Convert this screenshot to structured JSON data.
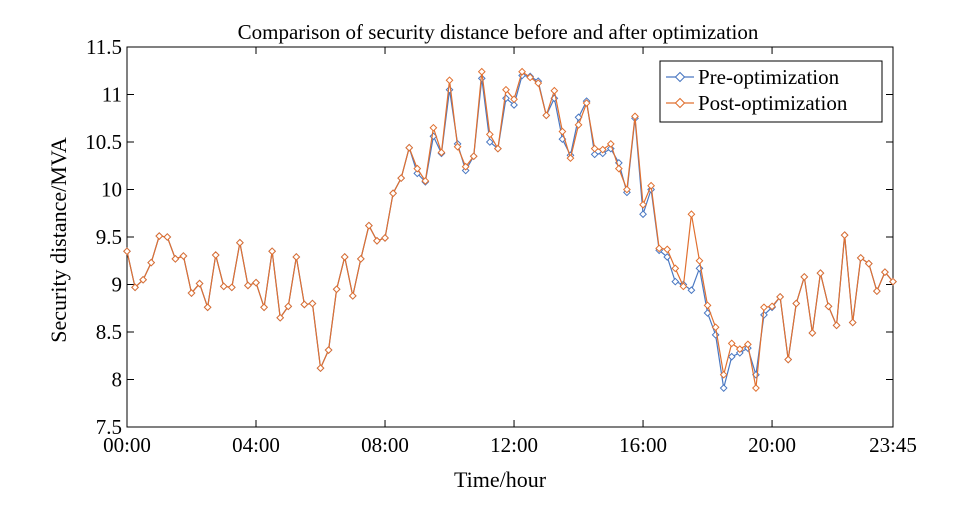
{
  "chart_data": {
    "type": "line",
    "title": "Comparison of security distance before and after optimization",
    "xlabel": "Time/hour",
    "ylabel": "Security distance/MVA",
    "x_tick_labels": [
      "00:00",
      "04:00",
      "08:00",
      "12:00",
      "16:00",
      "20:00",
      "23:45"
    ],
    "y_tick_labels": [
      "7.5",
      "8",
      "8.5",
      "9",
      "9.5",
      "10",
      "10.5",
      "11",
      "11.5"
    ],
    "xlim": [
      0,
      95
    ],
    "ylim": [
      7.5,
      11.5
    ],
    "grid": false,
    "legend_position": "top-right",
    "series": [
      {
        "name": "Pre-optimization",
        "color": "#4a78c2",
        "values": [
          9.35,
          8.97,
          9.05,
          9.23,
          9.51,
          9.5,
          9.27,
          9.3,
          8.91,
          9.01,
          8.76,
          9.31,
          8.98,
          8.97,
          9.44,
          8.99,
          9.02,
          8.76,
          9.35,
          8.65,
          8.77,
          9.29,
          8.79,
          8.8,
          8.12,
          8.31,
          8.95,
          9.29,
          8.88,
          9.27,
          9.62,
          9.46,
          9.49,
          9.96,
          10.12,
          10.44,
          10.17,
          10.08,
          10.56,
          10.38,
          11.05,
          10.48,
          10.2,
          10.35,
          11.17,
          10.5,
          10.43,
          10.96,
          10.89,
          11.2,
          11.19,
          11.14,
          10.78,
          10.96,
          10.53,
          10.36,
          10.76,
          10.93,
          10.37,
          10.38,
          10.43,
          10.28,
          9.97,
          10.75,
          9.74,
          10,
          9.36,
          9.29,
          9.03,
          9,
          8.94,
          9.17,
          8.7,
          8.47,
          7.91,
          8.24,
          8.28,
          8.33,
          8.05,
          8.68,
          8.76,
          8.87,
          8.21,
          8.8,
          9.08,
          8.49,
          9.12,
          8.77,
          8.57,
          9.52,
          8.6,
          9.28,
          9.22,
          8.93,
          9.13,
          9.03
        ]
      },
      {
        "name": "Post-optimization",
        "color": "#e07030",
        "values": [
          9.35,
          8.97,
          9.05,
          9.23,
          9.51,
          9.5,
          9.27,
          9.3,
          8.91,
          9.01,
          8.76,
          9.31,
          8.98,
          8.97,
          9.44,
          8.99,
          9.02,
          8.76,
          9.35,
          8.65,
          8.77,
          9.29,
          8.79,
          8.8,
          8.12,
          8.31,
          8.95,
          9.29,
          8.88,
          9.27,
          9.62,
          9.46,
          9.49,
          9.96,
          10.12,
          10.44,
          10.22,
          10.09,
          10.65,
          10.39,
          11.15,
          10.45,
          10.24,
          10.35,
          11.24,
          10.58,
          10.43,
          11.05,
          10.95,
          11.24,
          11.18,
          11.12,
          10.78,
          11.04,
          10.61,
          10.33,
          10.68,
          10.91,
          10.43,
          10.42,
          10.48,
          10.22,
          10,
          10.77,
          9.84,
          10.04,
          9.38,
          9.37,
          9.17,
          8.98,
          9.74,
          9.25,
          8.78,
          8.55,
          8.05,
          8.38,
          8.32,
          8.37,
          7.91,
          8.76,
          8.77,
          8.87,
          8.21,
          8.8,
          9.08,
          8.49,
          9.12,
          8.77,
          8.57,
          9.52,
          8.6,
          9.28,
          9.22,
          8.93,
          9.13,
          9.03
        ]
      }
    ]
  }
}
